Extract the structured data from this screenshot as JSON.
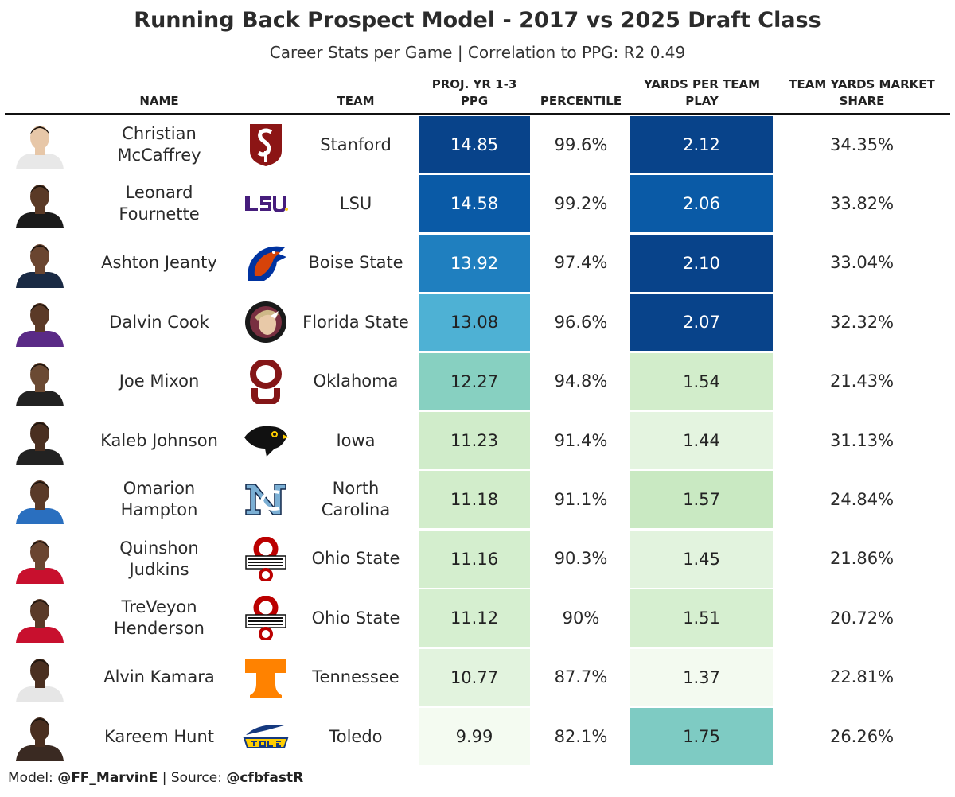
{
  "title": "Running Back Prospect Model - 2017 vs 2025 Draft Class",
  "subtitle": "Career Stats per Game | Correlation to PPG: R2 0.49",
  "columns": {
    "name": "NAME",
    "team": "TEAM",
    "ppg": "PROJ. YR 1-3 PPG",
    "percentile": "PERCENTILE",
    "yptp": "YARDS PER TEAM PLAY",
    "share": "TEAM YARDS MARKET SHARE"
  },
  "chart_data": {
    "type": "table",
    "rows": [
      {
        "name": "Christian McCaffrey",
        "team": "Stanford",
        "logo": "stanford-logo",
        "ppg": "14.85",
        "percentile": "99.6%",
        "yptp": "2.12",
        "share": "34.35%",
        "ppg_color": "#08438a",
        "yptp_color": "#08438a"
      },
      {
        "name": "Leonard Fournette",
        "team": "LSU",
        "logo": "lsu-logo",
        "ppg": "14.58",
        "percentile": "99.2%",
        "yptp": "2.06",
        "share": "33.82%",
        "ppg_color": "#0a5aa6",
        "yptp_color": "#0a5aa6"
      },
      {
        "name": "Ashton Jeanty",
        "team": "Boise State",
        "logo": "boise-state-logo",
        "ppg": "13.92",
        "percentile": "97.4%",
        "yptp": "2.10",
        "share": "33.04%",
        "ppg_color": "#1f7fbf",
        "yptp_color": "#08438a"
      },
      {
        "name": "Dalvin Cook",
        "team": "Florida State",
        "logo": "florida-state-logo",
        "ppg": "13.08",
        "percentile": "96.6%",
        "yptp": "2.07",
        "share": "32.32%",
        "ppg_color": "#4eb1d4",
        "yptp_color": "#08438a"
      },
      {
        "name": "Joe Mixon",
        "team": "Oklahoma",
        "logo": "oklahoma-logo",
        "ppg": "12.27",
        "percentile": "94.8%",
        "yptp": "1.54",
        "share": "21.43%",
        "ppg_color": "#87d0c1",
        "yptp_color": "#d2edcb"
      },
      {
        "name": "Kaleb Johnson",
        "team": "Iowa",
        "logo": "iowa-logo",
        "ppg": "11.23",
        "percentile": "91.4%",
        "yptp": "1.44",
        "share": "31.13%",
        "ppg_color": "#d0ecca",
        "yptp_color": "#e4f4e0"
      },
      {
        "name": "Omarion Hampton",
        "team": "North Carolina",
        "logo": "north-carolina-logo",
        "ppg": "11.18",
        "percentile": "91.1%",
        "yptp": "1.57",
        "share": "24.84%",
        "ppg_color": "#d2edcb",
        "yptp_color": "#c9e9c2"
      },
      {
        "name": "Quinshon Judkins",
        "team": "Ohio State",
        "logo": "ohio-state-logo",
        "ppg": "11.16",
        "percentile": "90.3%",
        "yptp": "1.45",
        "share": "21.86%",
        "ppg_color": "#d4eece",
        "yptp_color": "#e2f3de"
      },
      {
        "name": "TreVeyon Henderson",
        "team": "Ohio State",
        "logo": "ohio-state-logo",
        "ppg": "11.12",
        "percentile": "90%",
        "yptp": "1.51",
        "share": "20.72%",
        "ppg_color": "#d6efd0",
        "yptp_color": "#d6efd0"
      },
      {
        "name": "Alvin Kamara",
        "team": "Tennessee",
        "logo": "tennessee-logo",
        "ppg": "10.77",
        "percentile": "87.7%",
        "yptp": "1.37",
        "share": "22.81%",
        "ppg_color": "#e2f3de",
        "yptp_color": "#f3faf0"
      },
      {
        "name": "Kareem Hunt",
        "team": "Toledo",
        "logo": "toledo-logo",
        "ppg": "9.99",
        "percentile": "82.1%",
        "yptp": "1.75",
        "share": "26.26%",
        "ppg_color": "#f4fbf1",
        "yptp_color": "#7ecbc3"
      }
    ]
  },
  "footer": {
    "model_label": "Model: ",
    "model_handle": "@FF_MarvinE",
    "separator": " | Source: ",
    "source_handle": "@cfbfastR"
  },
  "colors": {
    "light_text": "#ffffff",
    "dark_text": "#222222",
    "rule": "#111111"
  }
}
